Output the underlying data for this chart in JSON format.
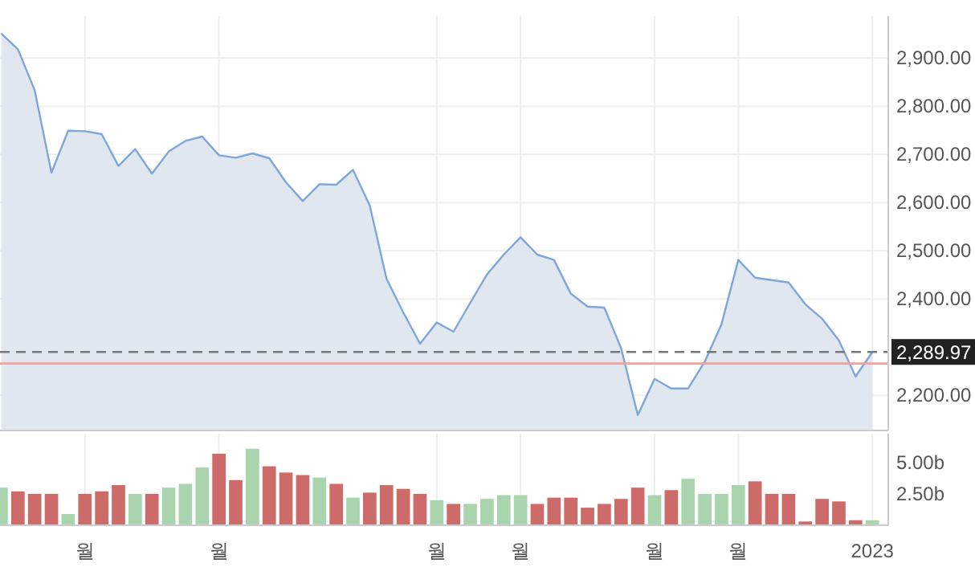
{
  "chart_data": [
    {
      "type": "area",
      "color": "#7ea6d8",
      "grid": true,
      "marker": "none",
      "categories": [
        null,
        null,
        null,
        null,
        null,
        null,
        null,
        null,
        null,
        null,
        null,
        null,
        null,
        null,
        null,
        null,
        null,
        null,
        null,
        null,
        null,
        null,
        null,
        null,
        null,
        null,
        null,
        null,
        null,
        null,
        null,
        null,
        null,
        null,
        null,
        null,
        null,
        null,
        null,
        null,
        null,
        null,
        null,
        null,
        null,
        null,
        null,
        null,
        null,
        null,
        null,
        null,
        null
      ],
      "values": [
        2951,
        2918,
        2833,
        2662,
        2749,
        2748,
        2742,
        2676,
        2711,
        2660,
        2706,
        2728,
        2737,
        2698,
        2693,
        2702,
        2692,
        2642,
        2603,
        2638,
        2637,
        2668,
        2594,
        2442,
        2372,
        2307,
        2351,
        2332,
        2392,
        2451,
        2492,
        2528,
        2492,
        2481,
        2411,
        2384,
        2382,
        2298,
        2159,
        2234,
        2214,
        2214,
        2270,
        2348,
        2481,
        2444,
        2439,
        2434,
        2389,
        2359,
        2314,
        2239,
        2290
      ],
      "ylim": [
        2127,
        2987
      ],
      "yticks": [
        {
          "value": 2200,
          "label": "2,200.00"
        },
        {
          "value": 2400,
          "label": "2,400.00"
        },
        {
          "value": 2500,
          "label": "2,500.00"
        },
        {
          "value": 2600,
          "label": "2,600.00"
        },
        {
          "value": 2700,
          "label": "2,700.00"
        },
        {
          "value": 2800,
          "label": "2,800.00"
        },
        {
          "value": 2900,
          "label": "2,900.00"
        }
      ],
      "ref_lines": [
        {
          "axis": "y",
          "value": 2289.97,
          "label": "2,289.97",
          "color": "#777777",
          "line_style": "dashed"
        },
        {
          "axis": "y",
          "value": 2266,
          "color": "#f2a0a0",
          "line_style": "solid"
        }
      ]
    },
    {
      "type": "bar",
      "grid": "x",
      "categories": [
        null,
        null,
        null,
        null,
        null,
        "월",
        null,
        null,
        null,
        null,
        null,
        null,
        null,
        "월",
        null,
        null,
        null,
        null,
        null,
        null,
        null,
        null,
        null,
        null,
        null,
        null,
        "월",
        null,
        null,
        null,
        null,
        "월",
        null,
        null,
        null,
        null,
        null,
        null,
        null,
        "월",
        null,
        null,
        null,
        null,
        "월",
        null,
        null,
        null,
        null,
        null,
        null,
        null,
        "2023"
      ],
      "values": [
        3.0,
        2.7,
        2.5,
        2.5,
        0.9,
        2.5,
        2.7,
        3.2,
        2.5,
        2.5,
        3.0,
        3.3,
        4.6,
        5.7,
        3.6,
        6.1,
        4.7,
        4.2,
        4.0,
        3.8,
        3.3,
        2.2,
        2.6,
        3.2,
        2.9,
        2.5,
        2.0,
        1.7,
        1.7,
        2.1,
        2.4,
        2.4,
        1.7,
        2.2,
        2.2,
        1.4,
        1.7,
        2.1,
        3.0,
        2.4,
        2.8,
        3.7,
        2.5,
        2.5,
        3.2,
        3.5,
        2.5,
        2.5,
        0.3,
        2.1,
        1.9,
        0.4,
        0.4
      ],
      "colors": [
        "#a9d4ae",
        "#cd6b6b",
        "#cd6b6b",
        "#cd6b6b",
        "#a9d4ae",
        "#cd6b6b",
        "#cd6b6b",
        "#cd6b6b",
        "#a9d4ae",
        "#cd6b6b",
        "#a9d4ae",
        "#a9d4ae",
        "#a9d4ae",
        "#cd6b6b",
        "#cd6b6b",
        "#a9d4ae",
        "#cd6b6b",
        "#cd6b6b",
        "#cd6b6b",
        "#a9d4ae",
        "#cd6b6b",
        "#a9d4ae",
        "#cd6b6b",
        "#cd6b6b",
        "#cd6b6b",
        "#cd6b6b",
        "#a9d4ae",
        "#cd6b6b",
        "#a9d4ae",
        "#a9d4ae",
        "#a9d4ae",
        "#a9d4ae",
        "#cd6b6b",
        "#cd6b6b",
        "#cd6b6b",
        "#cd6b6b",
        "#cd6b6b",
        "#cd6b6b",
        "#cd6b6b",
        "#a9d4ae",
        "#cd6b6b",
        "#a9d4ae",
        "#a9d4ae",
        "#a9d4ae",
        "#a9d4ae",
        "#cd6b6b",
        "#cd6b6b",
        "#cd6b6b",
        "#cd6b6b",
        "#cd6b6b",
        "#cd6b6b",
        "#cd6b6b",
        "#a9d4ae"
      ],
      "ylim": [
        0,
        7.3
      ],
      "yticks": [
        {
          "value": 2.5,
          "label": "2.50b"
        },
        {
          "value": 5,
          "label": "5.00b"
        }
      ]
    }
  ]
}
